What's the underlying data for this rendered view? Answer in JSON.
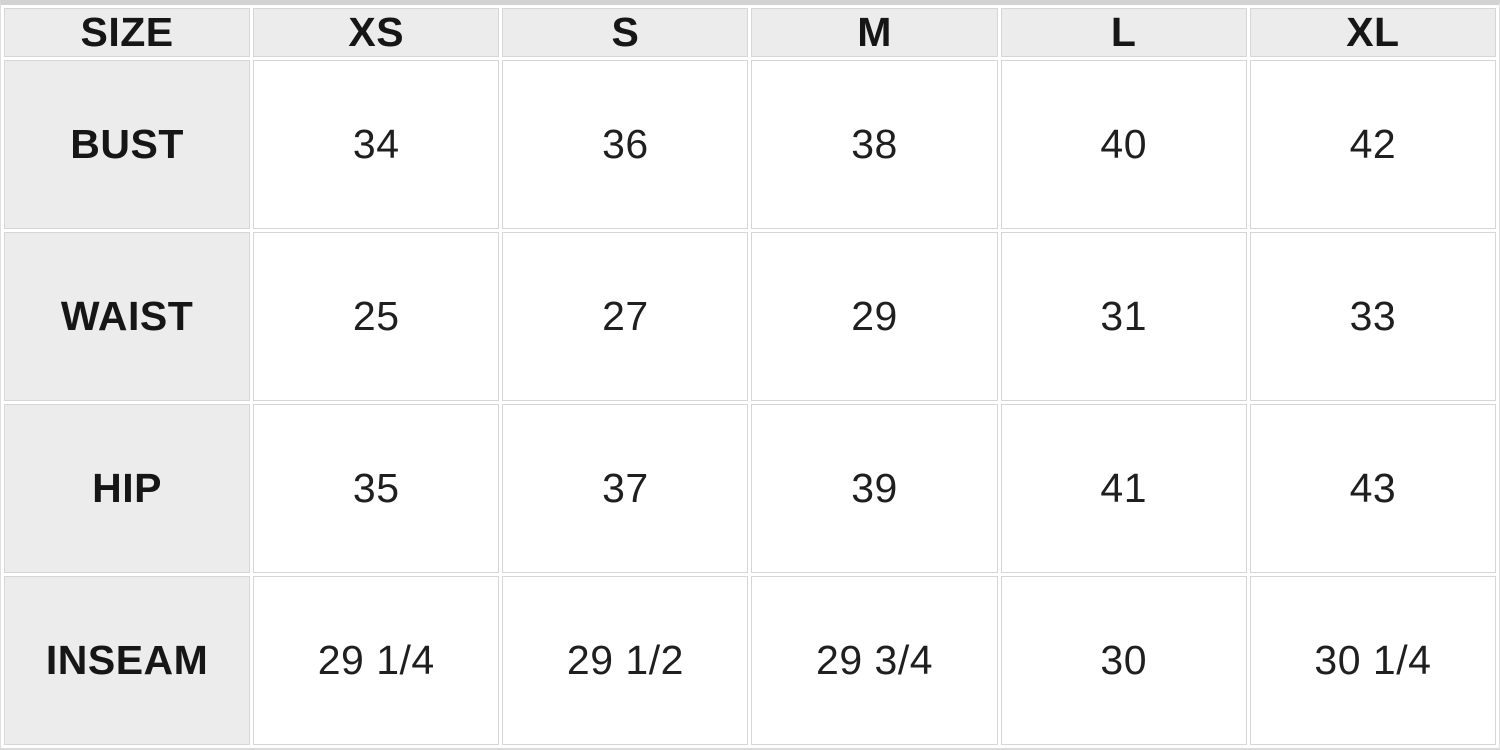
{
  "chart_data": {
    "type": "table",
    "columns": [
      "SIZE",
      "XS",
      "S",
      "M",
      "L",
      "XL"
    ],
    "rows": [
      {
        "label": "BUST",
        "values": [
          "34",
          "36",
          "38",
          "40",
          "42"
        ]
      },
      {
        "label": "WAIST",
        "values": [
          "25",
          "27",
          "29",
          "31",
          "33"
        ]
      },
      {
        "label": "HIP",
        "values": [
          "35",
          "37",
          "39",
          "41",
          "43"
        ]
      },
      {
        "label": "INSEAM",
        "values": [
          "29 1/4",
          "29 1/2",
          "29 3/4",
          "30",
          "30 1/4"
        ]
      }
    ],
    "layout_hints": {
      "header_row_shaded": true,
      "label_column_shaded": true,
      "grid_on": true
    }
  },
  "colors": {
    "header_bg": "#ececec",
    "cell_bg": "#ffffff",
    "grid_line": "#d6d6d6",
    "top_edge": "#d2d2d2",
    "text": "#1c1c1c"
  }
}
